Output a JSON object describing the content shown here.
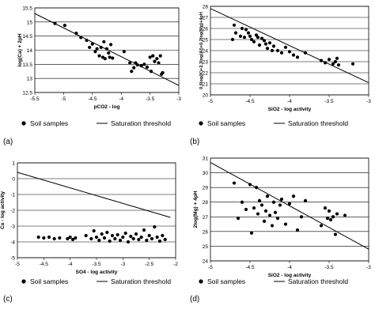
{
  "chart_data": [
    {
      "panel_label": "(a)",
      "type": "scatter",
      "xlabel": "pCO2 - log",
      "ylabel": "log(Ca) + 2pH",
      "xlim": [
        -5.5,
        -3
      ],
      "ylim": [
        12.5,
        15.5
      ],
      "xticks": [
        -5.5,
        -5,
        -4.5,
        -4,
        -3.5,
        -3
      ],
      "xtick_labels": [
        "-5.5",
        "-5",
        "-4.5",
        "-4",
        "-3.5",
        "-3"
      ],
      "yticks": [
        12.5,
        13,
        13.5,
        14,
        14.5,
        15,
        15.5
      ],
      "ytick_labels": [
        "12.5",
        "13",
        "13.5",
        "14",
        "14.5",
        "15",
        "15.5"
      ],
      "grid": "horizontal",
      "legend_position": "bottom",
      "series": [
        {
          "name": "Soil samples",
          "kind": "points",
          "x": [
            -5.15,
            -4.98,
            -4.78,
            -4.7,
            -4.6,
            -4.55,
            -4.5,
            -4.45,
            -4.42,
            -4.38,
            -4.35,
            -4.32,
            -4.3,
            -4.28,
            -4.25,
            -4.22,
            -4.2,
            -4.18,
            -4.15,
            -3.95,
            -3.85,
            -3.82,
            -3.78,
            -3.75,
            -3.72,
            -3.65,
            -3.6,
            -3.55,
            -3.5,
            -3.48,
            -3.45,
            -3.42,
            -3.38,
            -3.35,
            -3.32,
            -3.3,
            -3.28
          ],
          "y": [
            14.95,
            14.88,
            14.6,
            14.45,
            14.35,
            14.1,
            14.22,
            13.95,
            14.05,
            13.8,
            14.1,
            13.75,
            14.3,
            13.7,
            14.05,
            13.9,
            13.75,
            14.2,
            13.72,
            13.95,
            13.55,
            13.25,
            13.38,
            13.55,
            13.48,
            13.45,
            13.5,
            13.4,
            13.75,
            13.25,
            13.8,
            13.6,
            13.7,
            13.55,
            13.8,
            13.15,
            13.2
          ]
        },
        {
          "name": "Saturation threshold",
          "kind": "line",
          "x": [
            -5.5,
            -3
          ],
          "y": [
            15.3,
            12.75
          ]
        }
      ]
    },
    {
      "panel_label": "(b)",
      "type": "scatter",
      "xlabel": "SiO2 - log activity",
      "ylabel": "0.6log(K)+2.3log(Al)+0.2log(Mg)+4pH",
      "xlim": [
        -5,
        -3
      ],
      "ylim": [
        20,
        28
      ],
      "xticks": [
        -5,
        -4.5,
        -4,
        -3.5,
        -3
      ],
      "xtick_labels": [
        "-5",
        "-4.5",
        "-4",
        "-3.5",
        "-3"
      ],
      "yticks": [
        20,
        21,
        22,
        23,
        24,
        25,
        26,
        27,
        28
      ],
      "ytick_labels": [
        "20",
        "21",
        "22",
        "23",
        "24",
        "25",
        "26",
        "27",
        "28"
      ],
      "grid": "horizontal",
      "legend_position": "bottom",
      "series": [
        {
          "name": "Soil samples",
          "kind": "points",
          "x": [
            -4.72,
            -4.7,
            -4.68,
            -4.62,
            -4.6,
            -4.57,
            -4.55,
            -4.52,
            -4.5,
            -4.48,
            -4.45,
            -4.42,
            -4.4,
            -4.38,
            -4.35,
            -4.32,
            -4.3,
            -4.28,
            -4.25,
            -4.22,
            -4.2,
            -4.15,
            -4.1,
            -4.05,
            -4.0,
            -3.95,
            -3.9,
            -3.8,
            -3.6,
            -3.55,
            -3.5,
            -3.45,
            -3.42,
            -3.4,
            -3.38,
            -3.2
          ],
          "y": [
            25.0,
            26.3,
            25.6,
            25.3,
            26.0,
            25.2,
            25.9,
            25.6,
            25.3,
            25.0,
            24.8,
            25.4,
            25.2,
            24.5,
            25.1,
            24.9,
            24.6,
            24.2,
            24.7,
            24.0,
            24.4,
            24.0,
            23.8,
            24.3,
            23.9,
            23.6,
            23.4,
            23.8,
            23.1,
            22.9,
            23.2,
            22.8,
            23.0,
            23.3,
            22.7,
            22.8
          ]
        },
        {
          "name": "Saturation threshold",
          "kind": "line",
          "x": [
            -5,
            -3
          ],
          "y": [
            27.8,
            21.1
          ]
        }
      ]
    },
    {
      "panel_label": "(c)",
      "type": "scatter",
      "xlabel": "SO4 - log activity",
      "ylabel": "Ca - log activity",
      "xlim": [
        -5,
        -2
      ],
      "ylim": [
        -5,
        1
      ],
      "xticks": [
        -5,
        -4.5,
        -4,
        -3.5,
        -3,
        -2.5,
        -2
      ],
      "xtick_labels": [
        "-5",
        "-4.5",
        "-4",
        "-3.5",
        "-3",
        "-2.5",
        "-2"
      ],
      "yticks": [
        -5,
        -4,
        -3,
        -2,
        -1,
        0,
        1
      ],
      "ytick_labels": [
        "-5",
        "-4",
        "-3",
        "-2",
        "-1",
        "0",
        "1"
      ],
      "grid": "horizontal",
      "legend_position": "bottom",
      "series": [
        {
          "name": "Soil samples",
          "kind": "points",
          "x": [
            -4.6,
            -4.5,
            -4.4,
            -4.3,
            -4.2,
            -4.05,
            -4.0,
            -3.95,
            -3.9,
            -3.7,
            -3.6,
            -3.55,
            -3.5,
            -3.45,
            -3.4,
            -3.35,
            -3.3,
            -3.25,
            -3.2,
            -3.15,
            -3.1,
            -3.05,
            -3.0,
            -2.95,
            -2.9,
            -2.85,
            -2.8,
            -2.75,
            -2.7,
            -2.65,
            -2.6,
            -2.55,
            -2.5,
            -2.45,
            -2.4,
            -2.35,
            -2.3,
            -2.25,
            -2.2
          ],
          "y": [
            -3.7,
            -3.75,
            -3.7,
            -3.8,
            -3.75,
            -3.8,
            -3.7,
            -3.85,
            -3.75,
            -3.6,
            -3.8,
            -3.3,
            -3.7,
            -3.9,
            -3.5,
            -3.75,
            -3.4,
            -3.95,
            -3.6,
            -3.8,
            -3.55,
            -3.9,
            -3.7,
            -3.45,
            -4.0,
            -3.65,
            -3.8,
            -3.5,
            -3.85,
            -3.7,
            -3.25,
            -3.9,
            -3.6,
            -3.8,
            -3.05,
            -3.7,
            -3.95,
            -3.6,
            -3.85
          ]
        },
        {
          "name": "Saturation threshold",
          "kind": "line",
          "x": [
            -5,
            -2.1
          ],
          "y": [
            0.4,
            -2.45
          ]
        }
      ]
    },
    {
      "panel_label": "(d)",
      "type": "scatter",
      "xlabel": "SiO2 - log activity",
      "ylabel": "2log(Mg) + 4pH",
      "xlim": [
        -5,
        -3
      ],
      "ylim": [
        24,
        31
      ],
      "xticks": [
        -5,
        -4.5,
        -4,
        -3.5,
        -3
      ],
      "xtick_labels": [
        "-5",
        "-4.5",
        "-4",
        "-3.5",
        "-3"
      ],
      "yticks": [
        24,
        25,
        26,
        27,
        28,
        29,
        30,
        31
      ],
      "ytick_labels": [
        "24",
        "25",
        "26",
        "27",
        "28",
        "29",
        "30",
        "31"
      ],
      "grid": "horizontal",
      "legend_position": "bottom",
      "series": [
        {
          "name": "Soil samples",
          "kind": "points",
          "x": [
            -4.7,
            -4.65,
            -4.6,
            -4.55,
            -4.5,
            -4.48,
            -4.45,
            -4.42,
            -4.4,
            -4.38,
            -4.35,
            -4.32,
            -4.3,
            -4.28,
            -4.25,
            -4.22,
            -4.2,
            -4.18,
            -4.15,
            -4.12,
            -4.1,
            -4.05,
            -4.0,
            -3.95,
            -3.9,
            -3.85,
            -3.8,
            -3.6,
            -3.55,
            -3.52,
            -3.5,
            -3.48,
            -3.45,
            -3.42,
            -3.4,
            -3.3
          ],
          "y": [
            29.3,
            26.9,
            28.0,
            27.5,
            29.2,
            25.9,
            27.6,
            29.0,
            27.2,
            28.1,
            27.8,
            26.7,
            27.4,
            28.4,
            27.1,
            26.4,
            28.0,
            27.3,
            26.9,
            27.8,
            28.2,
            26.5,
            27.9,
            28.4,
            26.1,
            27.0,
            28.1,
            26.4,
            27.6,
            26.9,
            27.4,
            26.8,
            27.0,
            25.8,
            27.2,
            27.1
          ]
        },
        {
          "name": "Saturation threshold",
          "kind": "line",
          "x": [
            -5,
            -3
          ],
          "y": [
            30.7,
            24.8
          ]
        }
      ]
    }
  ]
}
